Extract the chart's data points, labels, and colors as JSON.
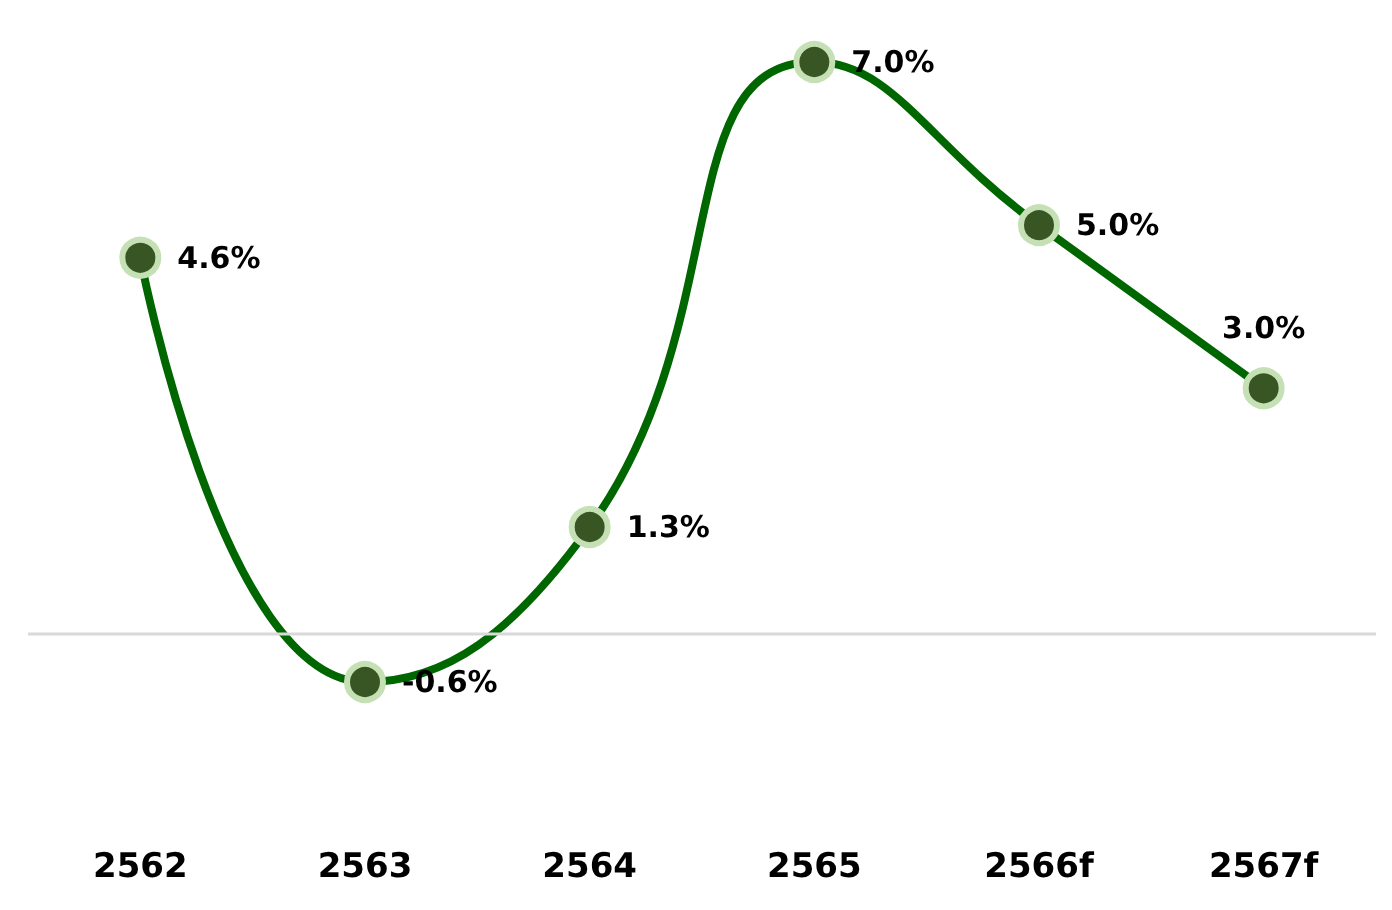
{
  "chart_data": {
    "type": "line",
    "categories": [
      "2562",
      "2563",
      "2564",
      "2565",
      "2566f",
      "2567f"
    ],
    "series": [
      {
        "color": "#006600",
        "values": [
          4.6,
          -0.6,
          1.3,
          7.0,
          5.0,
          3.0
        ],
        "value_labels": [
          "4.6%",
          "-0.6%",
          "1.3%",
          "7.0%",
          "5.0%",
          "3.0%"
        ]
      }
    ],
    "marker": "circle",
    "line_style": "solid",
    "grid": false,
    "ref_lines": [
      {
        "axis": "y",
        "value": 0,
        "color": "#d9d9d9"
      }
    ]
  }
}
